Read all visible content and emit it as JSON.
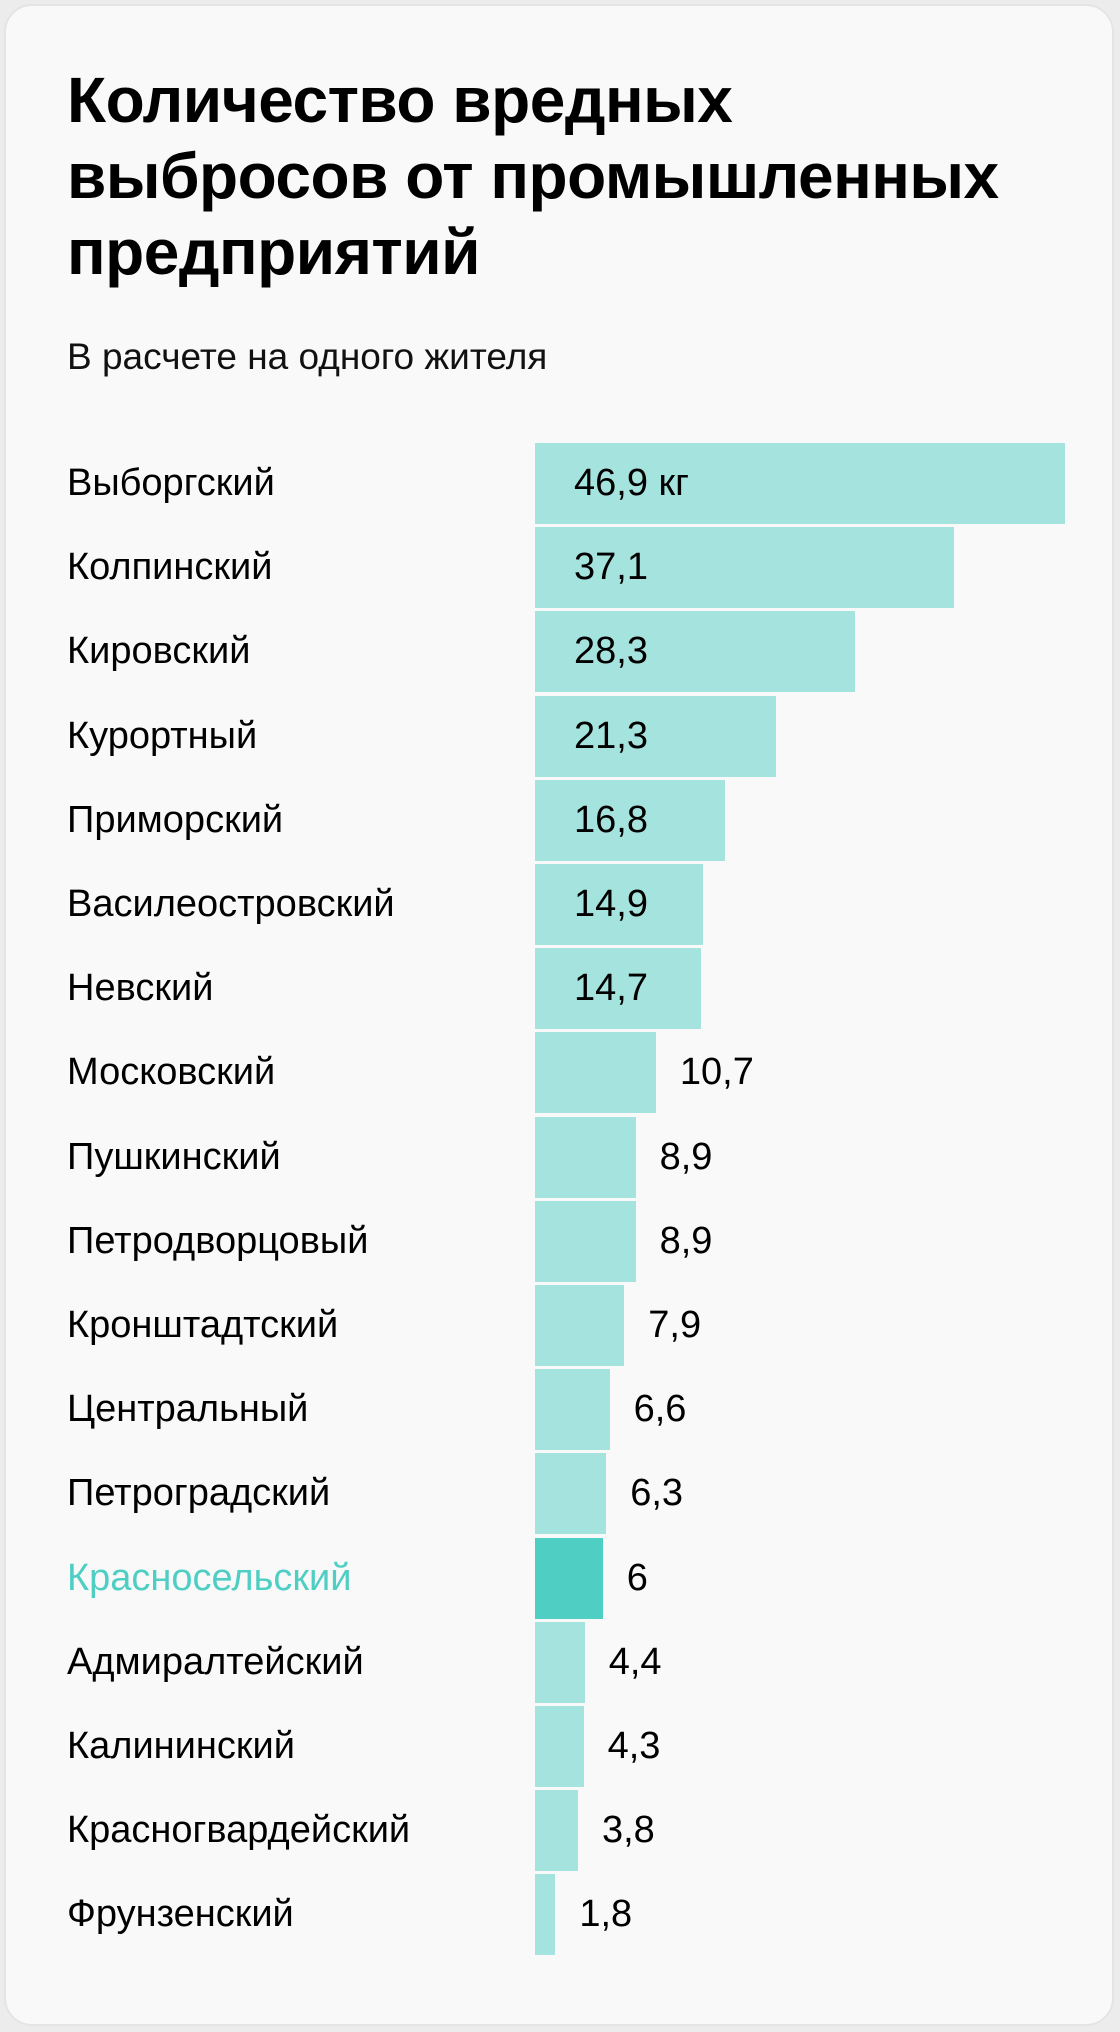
{
  "title": "Количество вредных выбросов от промышленных предприятий",
  "subtitle": "В расчете на одного жителя",
  "colors": {
    "bar": "#a5e3de",
    "highlight": "#4fcec4",
    "highlight_text": "#4fcec4"
  },
  "chart_data": {
    "type": "bar",
    "orientation": "horizontal",
    "title": "Количество вредных выбросов от промышленных предприятий",
    "subtitle": "В расчете на одного жителя",
    "unit": "кг",
    "highlight": "Красносельский",
    "categories": [
      "Выборгский",
      "Колпинский",
      "Кировский",
      "Курортный",
      "Приморский",
      "Василеостровский",
      "Невский",
      "Московский",
      "Пушкинский",
      "Петродворцовый",
      "Кронштадтский",
      "Центральный",
      "Петроградский",
      "Красносельский",
      "Адмиралтейский",
      "Калининский",
      "Красногвардейский",
      "Фрунзенский"
    ],
    "values": [
      46.9,
      37.1,
      28.3,
      21.3,
      16.8,
      14.9,
      14.7,
      10.7,
      8.9,
      8.9,
      7.9,
      6.6,
      6.3,
      6,
      4.4,
      4.3,
      3.8,
      1.8
    ],
    "value_labels": [
      "46,9 кг",
      "37,1",
      "28,3",
      "21,3",
      "16,8",
      "14,9",
      "14,7",
      "10,7",
      "8,9",
      "8,9",
      "7,9",
      "6,6",
      "6,3",
      "6",
      "4,4",
      "4,3",
      "3,8",
      "1,8"
    ],
    "xlim": [
      0,
      46.9
    ]
  }
}
